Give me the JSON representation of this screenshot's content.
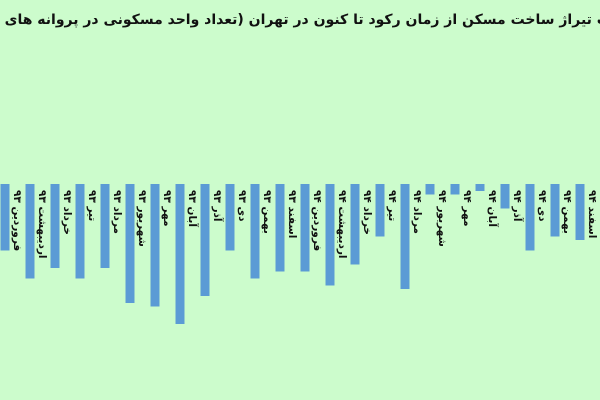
{
  "chart_data": {
    "type": "bar",
    "title": "تغییرات تیراژ ساخت مسکن از زمان رکود تا کنون در تهران (تعداد واحد مسکونی در پروانه های صادره)",
    "categories": [
      "فروردین ۹۳",
      "اردیبهشت ۹۳",
      "خرداد ۹۳",
      "تیر ۹۳",
      "مرداد ۹۳",
      "شهریور ۹۳",
      "مهر ۹۳",
      "آبان ۹۳",
      "آذر ۹۳",
      "دی ۹۳",
      "بهمن ۹۳",
      "اسفند ۹۳",
      "فروردین ۹۴",
      "اردیبهشت ۹۴",
      "خرداد ۹۴",
      "تیر ۹۴",
      "مرداد ۹۴",
      "شهریور ۹۴",
      "مهر ۹۴",
      "آبان ۹۴",
      "آذر ۹۴",
      "دی ۹۴",
      "بهمن ۹۴",
      "اسفند ۹۴"
    ],
    "values": [
      -19,
      -27,
      -24,
      -27,
      -24,
      -34,
      -35,
      -40,
      -32,
      -19,
      -27,
      -25,
      -25,
      -29,
      -23,
      -15,
      -30,
      -3,
      -3,
      -2,
      -7,
      -19,
      -15,
      -16
    ],
    "color": "#5b9bd5",
    "ylim": [
      -60,
      40
    ]
  }
}
